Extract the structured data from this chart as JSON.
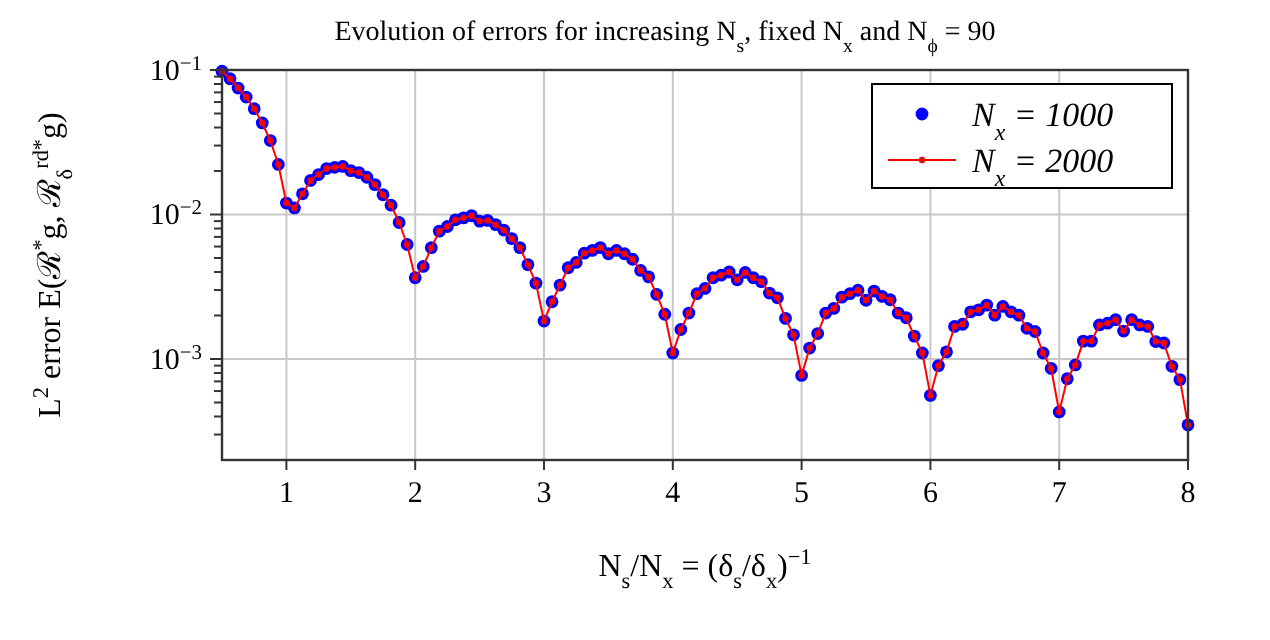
{
  "chart_data": {
    "type": "scatter",
    "title": "Evolution of errors for increasing N$_{s}$, fixed N$_{x}$ and N$_{ϕ}$ = 90",
    "xlabel": "N$_{s}$/N$_{x}$ = (δ$_{s}$/δ$_{x}$)$^{−1}$",
    "ylabel": "L$^{2}$ error E(ℛ$^{*}$g, ℛ$_{δ}$$^{rd*}$g)",
    "x": [
      0.5,
      0.5625,
      0.625,
      0.6875,
      0.75,
      0.8125,
      0.875,
      0.9375,
      1,
      1.0625,
      1.125,
      1.1875,
      1.25,
      1.3125,
      1.375,
      1.4375,
      1.5,
      1.5625,
      1.625,
      1.6875,
      1.75,
      1.8125,
      1.875,
      1.9375,
      2,
      2.0625,
      2.125,
      2.1875,
      2.25,
      2.3125,
      2.375,
      2.4375,
      2.5,
      2.5625,
      2.625,
      2.6875,
      2.75,
      2.8125,
      2.875,
      2.9375,
      3,
      3.0625,
      3.125,
      3.1875,
      3.25,
      3.3125,
      3.375,
      3.4375,
      3.5,
      3.5625,
      3.625,
      3.6875,
      3.75,
      3.8125,
      3.875,
      3.9375,
      4,
      4.0625,
      4.125,
      4.1875,
      4.25,
      4.3125,
      4.375,
      4.4375,
      4.5,
      4.5625,
      4.625,
      4.6875,
      4.75,
      4.8125,
      4.875,
      4.9375,
      5,
      5.0625,
      5.125,
      5.1875,
      5.25,
      5.3125,
      5.375,
      5.4375,
      5.5,
      5.5625,
      5.625,
      5.6875,
      5.75,
      5.8125,
      5.875,
      5.9375,
      6,
      6.0625,
      6.125,
      6.1875,
      6.25,
      6.3125,
      6.375,
      6.4375,
      6.5,
      6.5625,
      6.625,
      6.6875,
      6.75,
      6.8125,
      6.875,
      6.9375,
      7,
      7.0625,
      7.125,
      7.1875,
      7.25,
      7.3125,
      7.375,
      7.4375,
      7.5,
      7.5625,
      7.625,
      7.6875,
      7.75,
      7.8125,
      7.875,
      7.9375,
      8
    ],
    "series": [
      {
        "name": "N$_{x}$ = 1000",
        "marker": "circle",
        "color": "#0000ff",
        "values": [
          0.098,
          0.087,
          0.075,
          0.065,
          0.054,
          0.043,
          0.0325,
          0.0222,
          0.012,
          0.0111,
          0.0139,
          0.0172,
          0.0189,
          0.0208,
          0.0212,
          0.0215,
          0.0201,
          0.0195,
          0.0181,
          0.0161,
          0.0137,
          0.0116,
          0.0088,
          0.0062,
          0.00365,
          0.00437,
          0.00589,
          0.00767,
          0.00826,
          0.00919,
          0.00948,
          0.0098,
          0.009,
          0.0091,
          0.0085,
          0.0078,
          0.0068,
          0.0059,
          0.0045,
          0.00335,
          0.00183,
          0.00249,
          0.00325,
          0.00428,
          0.00466,
          0.0054,
          0.00564,
          0.0059,
          0.00535,
          0.00564,
          0.00535,
          0.0049,
          0.0041,
          0.0037,
          0.0028,
          0.00204,
          0.0011,
          0.0016,
          0.00208,
          0.00283,
          0.00308,
          0.00365,
          0.0038,
          0.004,
          0.00353,
          0.00397,
          0.00365,
          0.00343,
          0.00286,
          0.00265,
          0.00191,
          0.00147,
          0.00077,
          0.00119,
          0.0015,
          0.00208,
          0.00224,
          0.00268,
          0.00283,
          0.00299,
          0.00255,
          0.00295,
          0.00271,
          0.00257,
          0.00208,
          0.00193,
          0.00144,
          0.0011,
          0.00056,
          0.0009,
          0.00112,
          0.00168,
          0.00174,
          0.00212,
          0.00219,
          0.00236,
          0.00201,
          0.00231,
          0.00212,
          0.00201,
          0.00163,
          0.00155,
          0.0011,
          0.00086,
          0.00043,
          0.00073,
          0.00091,
          0.00133,
          0.00133,
          0.00172,
          0.00177,
          0.00187,
          0.00156,
          0.00187,
          0.00172,
          0.00168,
          0.00132,
          0.00129,
          0.00089,
          0.00072,
          0.00035
        ]
      },
      {
        "name": "N$_{x}$ = 2000",
        "type": "line",
        "marker": "circle",
        "line_style": "solid",
        "color": "#ff0000",
        "values": [
          0.098,
          0.087,
          0.075,
          0.065,
          0.054,
          0.043,
          0.0325,
          0.0222,
          0.012,
          0.0111,
          0.0139,
          0.0172,
          0.0189,
          0.0208,
          0.0212,
          0.0215,
          0.0201,
          0.0195,
          0.0181,
          0.0161,
          0.0137,
          0.0116,
          0.0088,
          0.0062,
          0.00365,
          0.00437,
          0.00589,
          0.00767,
          0.00826,
          0.00919,
          0.00948,
          0.0098,
          0.009,
          0.0091,
          0.0085,
          0.0078,
          0.0068,
          0.0059,
          0.0045,
          0.00335,
          0.00183,
          0.00249,
          0.00325,
          0.00428,
          0.00466,
          0.0054,
          0.00564,
          0.0059,
          0.00535,
          0.00564,
          0.00535,
          0.0049,
          0.0041,
          0.0037,
          0.0028,
          0.00204,
          0.0011,
          0.0016,
          0.00208,
          0.00283,
          0.00308,
          0.00365,
          0.0038,
          0.004,
          0.00353,
          0.00397,
          0.00365,
          0.00343,
          0.00286,
          0.00265,
          0.00191,
          0.00147,
          0.00077,
          0.00119,
          0.0015,
          0.00208,
          0.00224,
          0.00268,
          0.00283,
          0.00299,
          0.00255,
          0.00295,
          0.00271,
          0.00257,
          0.00208,
          0.00193,
          0.00144,
          0.0011,
          0.00056,
          0.0009,
          0.00112,
          0.00168,
          0.00174,
          0.00212,
          0.00219,
          0.00236,
          0.00201,
          0.00231,
          0.00212,
          0.00201,
          0.00163,
          0.00155,
          0.0011,
          0.00086,
          0.00043,
          0.00073,
          0.00091,
          0.00133,
          0.00133,
          0.00172,
          0.00177,
          0.00187,
          0.00156,
          0.00187,
          0.00172,
          0.00168,
          0.00132,
          0.00129,
          0.00089,
          0.00072,
          0.00035
        ]
      }
    ],
    "xlim": [
      0.5,
      8
    ],
    "xticks": [
      1,
      2,
      3,
      4,
      5,
      6,
      7,
      8
    ],
    "ylim": [
      0.0002,
      0.1
    ],
    "log": "y",
    "yticks": [
      {
        "value": 0.001,
        "label": "10$^{−3}$"
      },
      {
        "value": 0.01,
        "label": "10$^{−2}$"
      },
      {
        "value": 0.1,
        "label": "10$^{−1}$"
      },
      {
        "value": 0.0003,
        "label": null
      },
      {
        "value": 0.0004,
        "label": null
      },
      {
        "value": 0.0005,
        "label": null
      },
      {
        "value": 0.0006,
        "label": null
      },
      {
        "value": 0.0007,
        "label": null
      },
      {
        "value": 0.0008,
        "label": null
      },
      {
        "value": 0.0009,
        "label": null
      },
      {
        "value": 0.002,
        "label": null
      },
      {
        "value": 0.003,
        "label": null
      },
      {
        "value": 0.004,
        "label": null
      },
      {
        "value": 0.005,
        "label": null
      },
      {
        "value": 0.006,
        "label": null
      },
      {
        "value": 0.007,
        "label": null
      },
      {
        "value": 0.008,
        "label": null
      },
      {
        "value": 0.009,
        "label": null
      },
      {
        "value": 0.02,
        "label": null
      },
      {
        "value": 0.03,
        "label": null
      },
      {
        "value": 0.04,
        "label": null
      },
      {
        "value": 0.05,
        "label": null
      },
      {
        "value": 0.06,
        "label": null
      },
      {
        "value": 0.07,
        "label": null
      },
      {
        "value": 0.08,
        "label": null
      },
      {
        "value": 0.09,
        "label": null
      }
    ],
    "grid": true,
    "legend": "top right"
  }
}
